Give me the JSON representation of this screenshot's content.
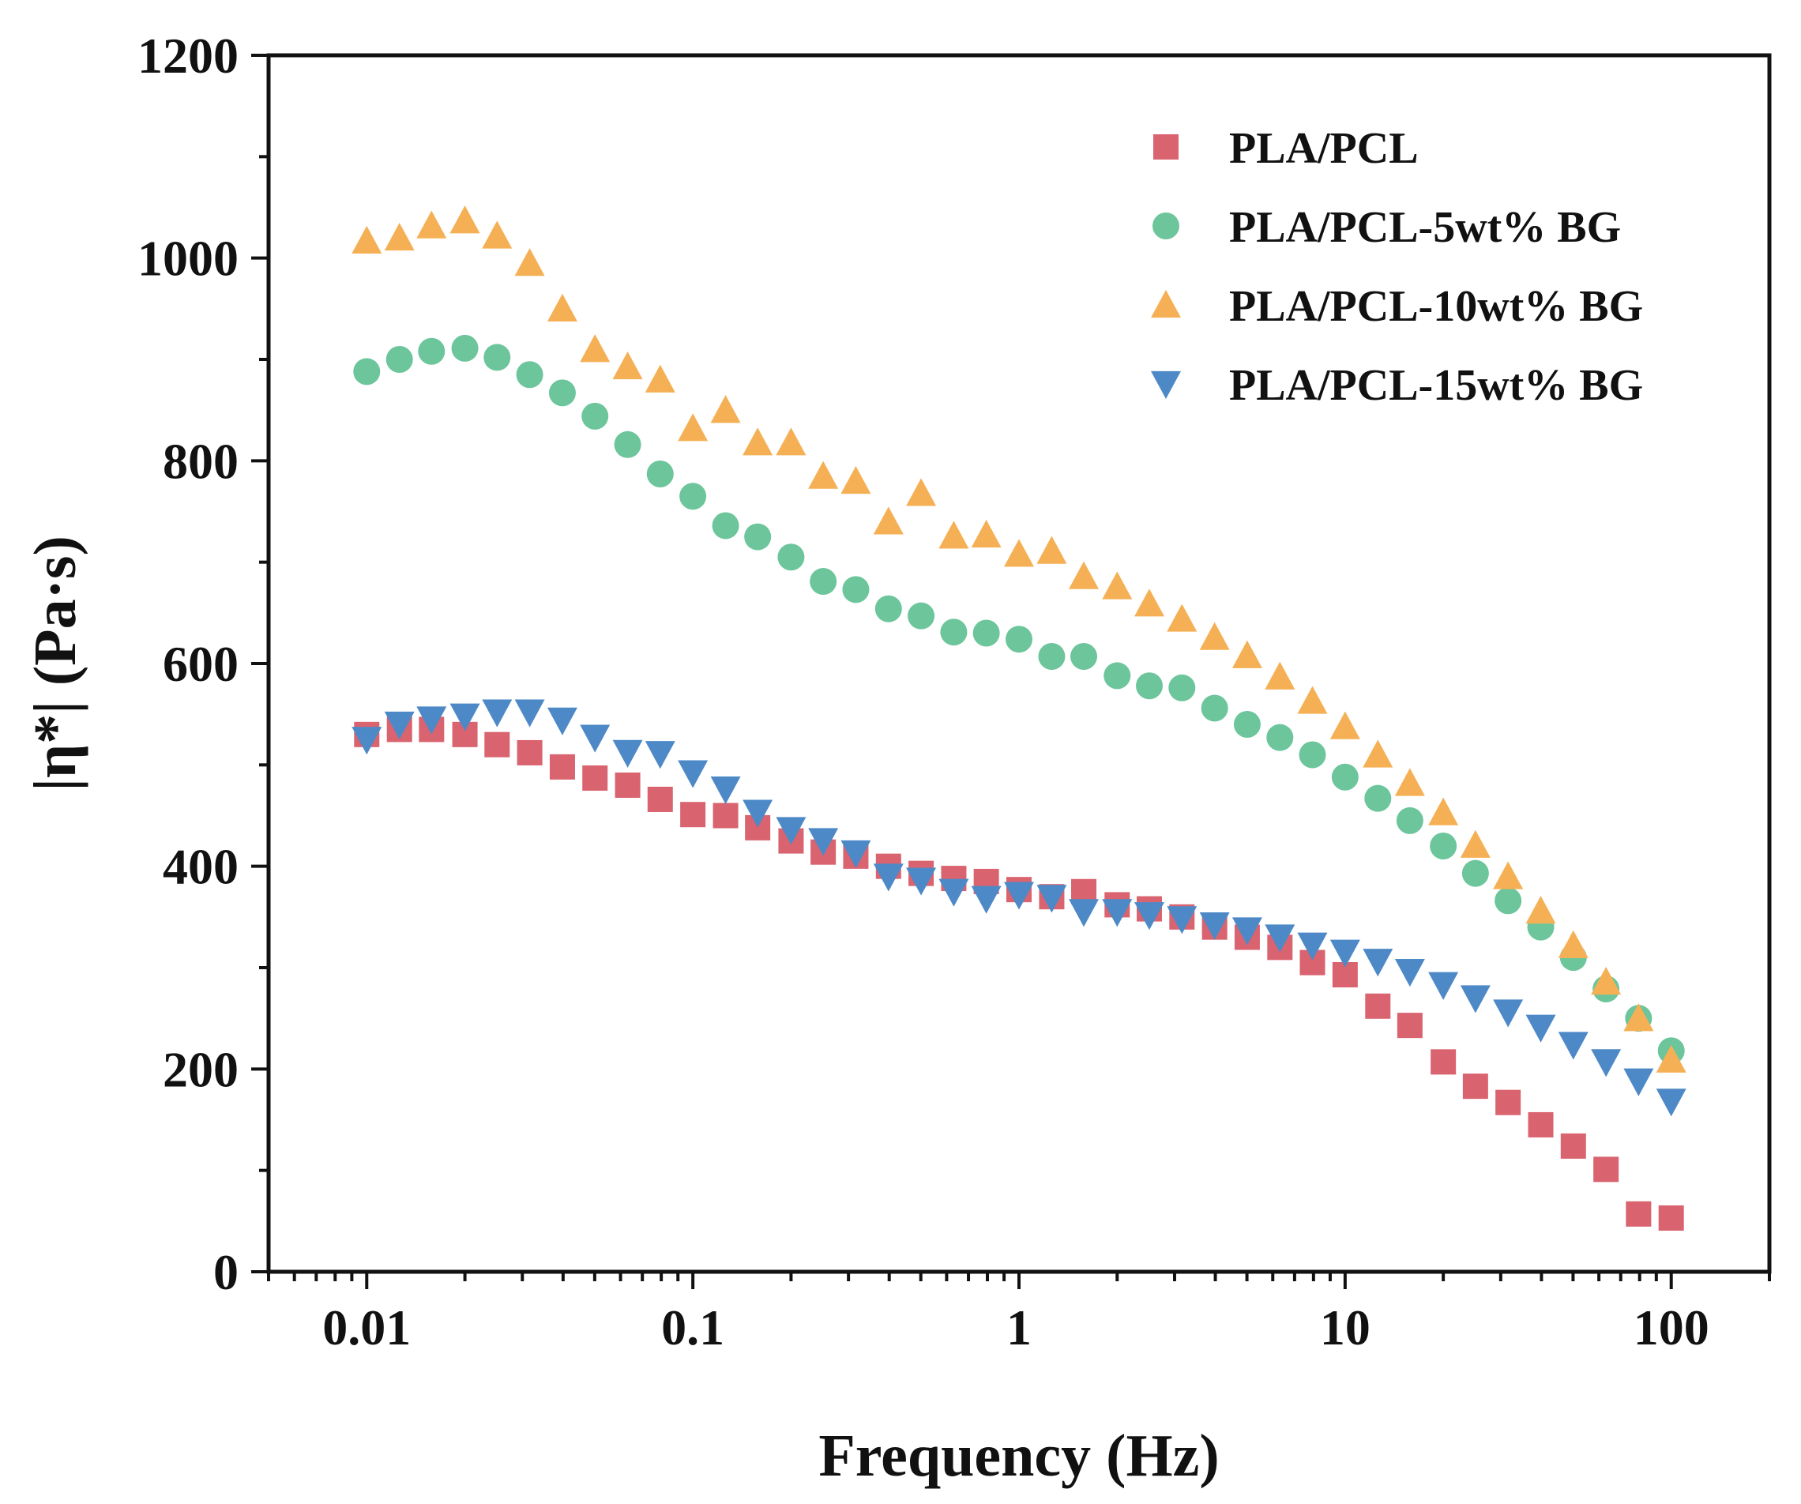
{
  "chart_data": {
    "type": "scatter",
    "title": "",
    "xlabel": "Frequency (Hz)",
    "ylabel": "|η*| (Pa·s)",
    "x_scale": "log",
    "xlim": [
      0.005,
      200
    ],
    "ylim": [
      0,
      1200
    ],
    "x_ticks": [
      0.01,
      0.1,
      1,
      10,
      100
    ],
    "x_tick_labels": [
      "0.01",
      "0.1",
      "1",
      "10",
      "100"
    ],
    "y_ticks": [
      0,
      200,
      400,
      600,
      800,
      1000,
      1200
    ],
    "y_tick_labels": [
      "0",
      "200",
      "400",
      "600",
      "800",
      "1000",
      "1200"
    ],
    "grid": false,
    "legend_position": "top-right",
    "x": [
      0.01,
      0.0126,
      0.0158,
      0.02,
      0.0251,
      0.0316,
      0.0398,
      0.0501,
      0.0631,
      0.0794,
      0.1,
      0.126,
      0.158,
      0.2,
      0.251,
      0.316,
      0.398,
      0.501,
      0.631,
      0.794,
      1,
      1.26,
      1.58,
      2,
      2.51,
      3.16,
      3.98,
      5.01,
      6.31,
      7.94,
      10,
      12.6,
      15.8,
      20,
      25.1,
      31.6,
      39.8,
      50.1,
      63.1,
      79.4,
      100
    ],
    "series": [
      {
        "name": "PLA/PCL",
        "marker": "square",
        "color": "#d9636f",
        "values": [
          530,
          535,
          535,
          530,
          520,
          512,
          498,
          487,
          480,
          466,
          451,
          450,
          438,
          425,
          414,
          410,
          400,
          393,
          388,
          385,
          377,
          370,
          375,
          362,
          358,
          350,
          340,
          330,
          320,
          305,
          293,
          262,
          243,
          207,
          183,
          167,
          145,
          124,
          101,
          57,
          53
        ]
      },
      {
        "name": "PLA/PCL-5wt% BG",
        "marker": "circle",
        "color": "#6cc59b",
        "values": [
          888,
          900,
          908,
          911,
          902,
          885,
          867,
          844,
          816,
          787,
          765,
          736,
          725,
          705,
          681,
          673,
          654,
          647,
          631,
          630,
          624,
          607,
          607,
          588,
          578,
          576,
          556,
          540,
          527,
          510,
          488,
          467,
          445,
          420,
          393,
          366,
          340,
          310,
          279,
          250,
          218
        ]
      },
      {
        "name": "PLA/PCL-10wt%  BG",
        "marker": "triangle-up",
        "color": "#f5b055",
        "values": [
          1017,
          1020,
          1032,
          1037,
          1022,
          995,
          950,
          910,
          893,
          880,
          832,
          850,
          818,
          818,
          785,
          780,
          740,
          768,
          726,
          727,
          708,
          711,
          686,
          676,
          659,
          644,
          626,
          608,
          587,
          563,
          538,
          510,
          482,
          453,
          421,
          390,
          356,
          322,
          286,
          250,
          209
        ]
      },
      {
        "name": "PLA/PCL-15wt%  BG",
        "marker": "triangle-down",
        "color": "#4e89c7",
        "values": [
          525,
          540,
          545,
          548,
          552,
          552,
          544,
          527,
          512,
          511,
          492,
          476,
          453,
          436,
          425,
          413,
          390,
          386,
          375,
          368,
          372,
          369,
          355,
          355,
          352,
          348,
          342,
          337,
          330,
          322,
          315,
          306,
          296,
          283,
          270,
          256,
          241,
          224,
          207,
          188,
          168
        ]
      }
    ]
  }
}
